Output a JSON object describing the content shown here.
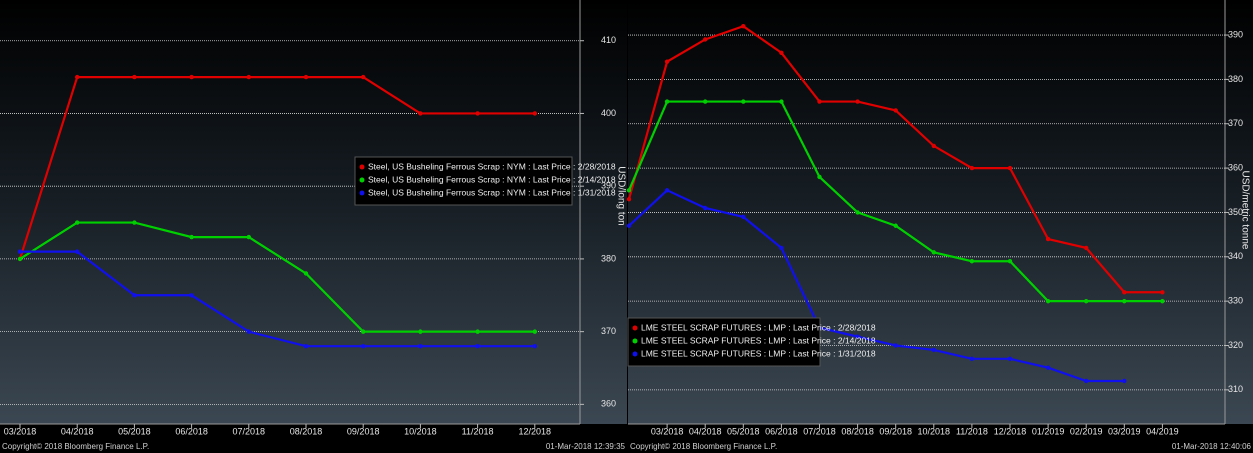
{
  "chart_data": [
    {
      "type": "line",
      "y_label": "USD/long ton",
      "categories": [
        "03/2018",
        "04/2018",
        "05/2018",
        "06/2018",
        "07/2018",
        "08/2018",
        "09/2018",
        "10/2018",
        "11/2018",
        "12/2018"
      ],
      "series": [
        {
          "name": "Steel, US Busheling Ferrous Scrap : NYM : Last Price : 2/28/2018",
          "color": "#e00000",
          "values": [
            380,
            405,
            405,
            405,
            405,
            405,
            405,
            400,
            400,
            400
          ]
        },
        {
          "name": "Steel, US Busheling Ferrous Scrap : NYM : Last Price : 2/14/2018",
          "color": "#00d000",
          "values": [
            380,
            385,
            385,
            383,
            383,
            378,
            370,
            370,
            370,
            370
          ]
        },
        {
          "name": "Steel, US Busheling Ferrous Scrap : NYM : Last Price : 1/31/2018",
          "color": "#1010ee",
          "values": [
            381,
            381,
            375,
            375,
            370,
            368,
            368,
            368,
            368,
            368
          ]
        }
      ],
      "ylim": [
        357.3,
        415.6
      ],
      "yticks": [
        360,
        370,
        380,
        390,
        400,
        410
      ],
      "grid": true,
      "legend_position": "right",
      "copyright": "Copyright© 2018 Bloomberg Finance L.P.",
      "timestamp": "01-Mar-2018 12:39:35"
    },
    {
      "type": "line",
      "y_label": "USD/metric tonne",
      "categories": [
        null,
        "03/2018",
        "04/2018",
        "05/2018",
        "06/2018",
        "07/2018",
        "08/2018",
        "09/2018",
        "10/2018",
        "11/2018",
        "12/2018",
        "01/2019",
        "02/2019",
        "03/2019",
        "04/2019"
      ],
      "series": [
        {
          "name": "LME STEEL SCRAP FUTURES : LMP : Last Price : 2/28/2018",
          "color": "#e00000",
          "values": [
            353,
            384,
            389,
            392,
            386,
            375,
            375,
            373,
            365,
            360,
            360,
            344,
            342,
            332,
            332
          ]
        },
        {
          "name": "LME STEEL SCRAP FUTURES : LMP : Last Price : 2/14/2018",
          "color": "#00d000",
          "values": [
            355,
            375,
            375,
            375,
            375,
            358,
            350,
            347,
            341,
            339,
            339,
            330,
            330,
            330,
            330
          ]
        },
        {
          "name": "LME STEEL SCRAP FUTURES : LMP : Last Price : 1/31/2018",
          "color": "#1010ee",
          "values": [
            347,
            355,
            351,
            349,
            342,
            324,
            322,
            320,
            319,
            317,
            317,
            315,
            312,
            312,
            null
          ]
        }
      ],
      "ylim": [
        302.3,
        397.9
      ],
      "yticks": [
        310,
        320,
        330,
        340,
        350,
        360,
        370,
        380,
        390
      ],
      "grid": true,
      "legend_position": "lower left",
      "copyright": "Copyright© 2018 Bloomberg Finance L.P.",
      "timestamp": "01-Mar-2018 12:40:06"
    }
  ]
}
